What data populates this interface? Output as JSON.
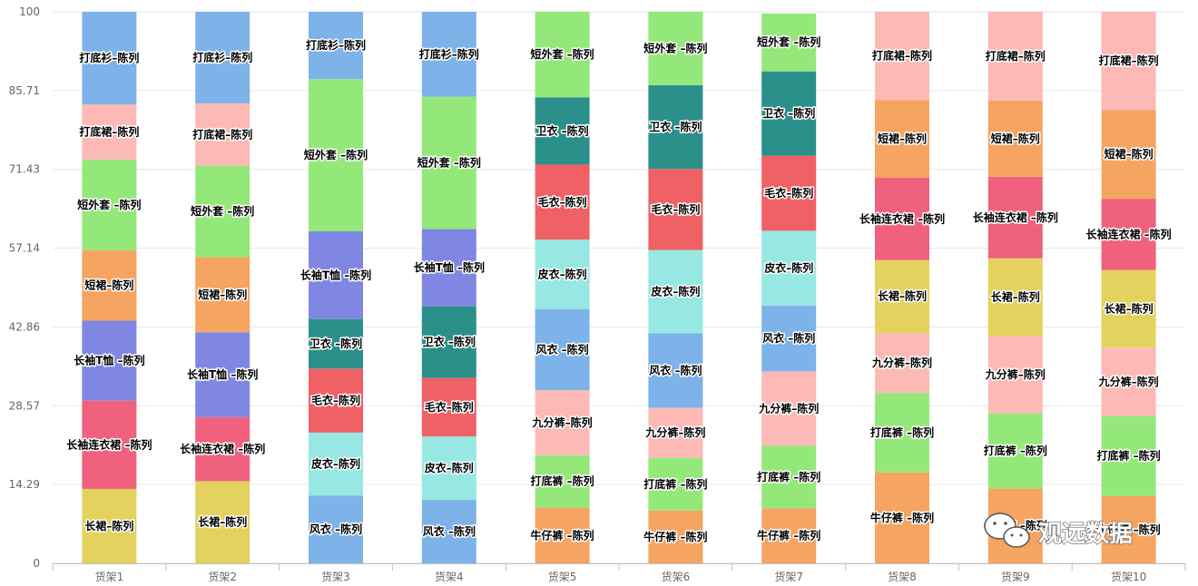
{
  "chart_data": {
    "type": "bar",
    "stacked": true,
    "ylim": [
      0,
      100
    ],
    "yticks": [
      "0",
      "14.29",
      "28.57",
      "42.86",
      "57.14",
      "71.43",
      "85.71",
      "100"
    ],
    "grid": true,
    "categories": [
      "货架1",
      "货架2",
      "货架3",
      "货架4",
      "货架5",
      "货架6",
      "货架7",
      "货架8",
      "货架9",
      "货架10"
    ],
    "stacks": [
      [
        {
          "label": "长裙–陈列",
          "value": 13.5,
          "color": "#e3d25e"
        },
        {
          "label": "长袖连衣裙 –陈列",
          "value": 16.0,
          "color": "#f0617e"
        },
        {
          "label": "长袖T恤 –陈列",
          "value": 14.5,
          "color": "#8087e2"
        },
        {
          "label": "短裙–陈列",
          "value": 12.8,
          "color": "#f5a462"
        },
        {
          "label": "短外套 –陈列",
          "value": 16.4,
          "color": "#93e879"
        },
        {
          "label": "打底裙–陈列",
          "value": 10.0,
          "color": "#fdb9b6"
        },
        {
          "label": "打底衫–陈列",
          "value": 16.8,
          "color": "#7db3e8"
        }
      ],
      [
        {
          "label": "长裙–陈列",
          "value": 14.9,
          "color": "#e3d25e"
        },
        {
          "label": "长袖连衣裙 –陈列",
          "value": 11.6,
          "color": "#f0617e"
        },
        {
          "label": "长袖T恤 –陈列",
          "value": 15.4,
          "color": "#8087e2"
        },
        {
          "label": "短裙–陈列",
          "value": 13.6,
          "color": "#f5a462"
        },
        {
          "label": "短外套 –陈列",
          "value": 16.6,
          "color": "#93e879"
        },
        {
          "label": "打底裙–陈列",
          "value": 11.3,
          "color": "#fdb9b6"
        },
        {
          "label": "打底衫–陈列",
          "value": 16.6,
          "color": "#7db3e8"
        }
      ],
      [
        {
          "label": "风衣 –陈列",
          "value": 12.3,
          "color": "#7db3e8"
        },
        {
          "label": "皮衣–陈列",
          "value": 11.4,
          "color": "#97e8e2"
        },
        {
          "label": "毛衣–陈列",
          "value": 11.6,
          "color": "#f06165"
        },
        {
          "label": "卫衣 –陈列",
          "value": 9.0,
          "color": "#2c908a"
        },
        {
          "label": "长袖T恤 –陈列",
          "value": 15.9,
          "color": "#8087e2"
        },
        {
          "label": "短外套 –陈列",
          "value": 27.6,
          "color": "#93e879"
        },
        {
          "label": "打底衫–陈列",
          "value": 12.2,
          "color": "#7db3e8"
        }
      ],
      [
        {
          "label": "风衣 –陈列",
          "value": 11.5,
          "color": "#7db3e8"
        },
        {
          "label": "皮衣–陈列",
          "value": 11.5,
          "color": "#97e8e2"
        },
        {
          "label": "毛衣–陈列",
          "value": 10.6,
          "color": "#f06165"
        },
        {
          "label": "卫衣 –陈列",
          "value": 13.0,
          "color": "#2c908a"
        },
        {
          "label": "长袖T恤 –陈列",
          "value": 14.0,
          "color": "#8087e2"
        },
        {
          "label": "短外套 –陈列",
          "value": 24.0,
          "color": "#93e879"
        },
        {
          "label": "打底衫–陈列",
          "value": 15.4,
          "color": "#7db3e8"
        }
      ],
      [
        {
          "label": "牛仔裤 –陈列",
          "value": 10.1,
          "color": "#f5a462"
        },
        {
          "label": "打底裤 –陈列",
          "value": 9.5,
          "color": "#93e879"
        },
        {
          "label": "九分裤–陈列",
          "value": 11.8,
          "color": "#fdb9b6"
        },
        {
          "label": "风衣 –陈列",
          "value": 14.7,
          "color": "#7db3e8"
        },
        {
          "label": "皮衣–陈列",
          "value": 12.6,
          "color": "#97e8e2"
        },
        {
          "label": "毛衣–陈列",
          "value": 13.6,
          "color": "#f06165"
        },
        {
          "label": "卫衣 –陈列",
          "value": 12.2,
          "color": "#2c908a"
        },
        {
          "label": "短外套 –陈列",
          "value": 15.5,
          "color": "#93e879"
        }
      ],
      [
        {
          "label": "牛仔裤 –陈列",
          "value": 9.6,
          "color": "#f5a462"
        },
        {
          "label": "打底裤 –陈列",
          "value": 9.5,
          "color": "#93e879"
        },
        {
          "label": "九分裤–陈列",
          "value": 9.1,
          "color": "#fdb9b6"
        },
        {
          "label": "风衣 –陈列",
          "value": 13.5,
          "color": "#7db3e8"
        },
        {
          "label": "皮衣–陈列",
          "value": 15.1,
          "color": "#97e8e2"
        },
        {
          "label": "毛衣–陈列",
          "value": 14.7,
          "color": "#f06165"
        },
        {
          "label": "卫衣 –陈列",
          "value": 15.2,
          "color": "#2c908a"
        },
        {
          "label": "短外套 –陈列",
          "value": 13.3,
          "color": "#93e879"
        }
      ],
      [
        {
          "label": "牛仔裤 –陈列",
          "value": 10.0,
          "color": "#f5a462"
        },
        {
          "label": "打底裤 –陈列",
          "value": 11.3,
          "color": "#93e879"
        },
        {
          "label": "九分裤–陈列",
          "value": 13.5,
          "color": "#fdb9b6"
        },
        {
          "label": "风衣 –陈列",
          "value": 11.9,
          "color": "#7db3e8"
        },
        {
          "label": "皮衣–陈列",
          "value": 13.6,
          "color": "#97e8e2"
        },
        {
          "label": "毛衣–陈列",
          "value": 13.6,
          "color": "#f06165"
        },
        {
          "label": "卫衣 –陈列",
          "value": 15.3,
          "color": "#2c908a"
        },
        {
          "label": "短外套 –陈列",
          "value": 10.5,
          "color": "#93e879"
        }
      ],
      [
        {
          "label": "牛仔裤 –陈列",
          "value": 16.5,
          "color": "#f5a462"
        },
        {
          "label": "打底裤 –陈列",
          "value": 14.4,
          "color": "#93e879"
        },
        {
          "label": "九分裤–陈列",
          "value": 10.9,
          "color": "#fdb9b6"
        },
        {
          "label": "长裙–陈列",
          "value": 13.2,
          "color": "#e3d25e"
        },
        {
          "label": "长袖连衣裙 –陈列",
          "value": 14.9,
          "color": "#f0617e"
        },
        {
          "label": "短裙–陈列",
          "value": 14.1,
          "color": "#f5a462"
        },
        {
          "label": "打底裙–陈列",
          "value": 16.0,
          "color": "#fdb9b6"
        }
      ],
      [
        {
          "label": "牛仔裤 –陈列",
          "value": 13.6,
          "color": "#f5a462"
        },
        {
          "label": "打底裤 –陈列",
          "value": 13.6,
          "color": "#93e879"
        },
        {
          "label": "九分裤–陈列",
          "value": 14.0,
          "color": "#fdb9b6"
        },
        {
          "label": "长裙–陈列",
          "value": 14.1,
          "color": "#e3d25e"
        },
        {
          "label": "长袖连衣裙 –陈列",
          "value": 14.8,
          "color": "#f0617e"
        },
        {
          "label": "短裙–陈列",
          "value": 13.8,
          "color": "#f5a462"
        },
        {
          "label": "打底裙–陈列",
          "value": 16.1,
          "color": "#fdb9b6"
        }
      ],
      [
        {
          "label": "牛仔裤 –陈列",
          "value": 12.2,
          "color": "#f5a462"
        },
        {
          "label": "打底裤 –陈列",
          "value": 14.5,
          "color": "#93e879"
        },
        {
          "label": "九分裤–陈列",
          "value": 12.4,
          "color": "#fdb9b6"
        },
        {
          "label": "长裙–陈列",
          "value": 14.1,
          "color": "#e3d25e"
        },
        {
          "label": "长袖连衣裙 –陈列",
          "value": 12.9,
          "color": "#f0617e"
        },
        {
          "label": "短裙–陈列",
          "value": 16.1,
          "color": "#f5a462"
        },
        {
          "label": "打底裙–陈列",
          "value": 17.8,
          "color": "#fdb9b6"
        }
      ]
    ]
  },
  "watermark": {
    "text": "观远数据",
    "icon": "wechat-icon"
  }
}
